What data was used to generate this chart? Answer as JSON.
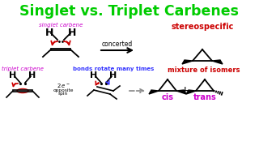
{
  "title": "Singlet vs. Triplet Carbenes",
  "title_color": "#00CC00",
  "title_fontsize": 12.5,
  "bg_color": "#FFFFFF",
  "singlet_label": "singlet carbene",
  "singlet_label_color": "#CC00CC",
  "triplet_label": "triplet carbene",
  "triplet_label_color": "#CC00CC",
  "bonds_rotate_label": "bonds rotate many times",
  "bonds_rotate_color": "#3333FF",
  "concerted_label": "concerted",
  "stereospecific_label": "stereospecific",
  "stereospecific_color": "#CC0000",
  "mixture_label": "mixture of isomers",
  "mixture_color": "#CC0000",
  "cis_label": "cis",
  "cis_color": "#CC00CC",
  "trans_label": "trans",
  "trans_color": "#CC00CC",
  "arrow_color": "#000000",
  "red_arrow_color": "#CC0000",
  "blue_arrow_color": "#3333FF"
}
